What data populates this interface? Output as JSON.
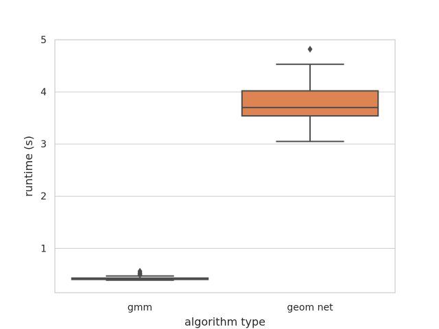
{
  "chart_data": {
    "type": "box",
    "xlabel": "algorithm type",
    "ylabel": "runtime (s)",
    "ylim": [
      0.15,
      5.0
    ],
    "yticks": [
      1,
      2,
      3,
      4,
      5
    ],
    "grid": true,
    "categories": [
      "gmm",
      "geom net"
    ],
    "boxes": [
      {
        "category": "gmm",
        "color": "#4c72b0",
        "whisker_low": 0.39,
        "q1": 0.405,
        "median": 0.415,
        "q3": 0.43,
        "whisker_high": 0.47,
        "outliers": [
          0.49,
          0.51,
          0.53,
          0.56
        ]
      },
      {
        "category": "geom net",
        "color": "#dd8452",
        "whisker_low": 3.05,
        "q1": 3.54,
        "median": 3.7,
        "q3": 4.02,
        "whisker_high": 4.53,
        "outliers": [
          4.82
        ]
      }
    ]
  },
  "colors": {
    "grid": "#cccccc",
    "edge": "#4d4d4d",
    "spine": "#cccccc"
  }
}
